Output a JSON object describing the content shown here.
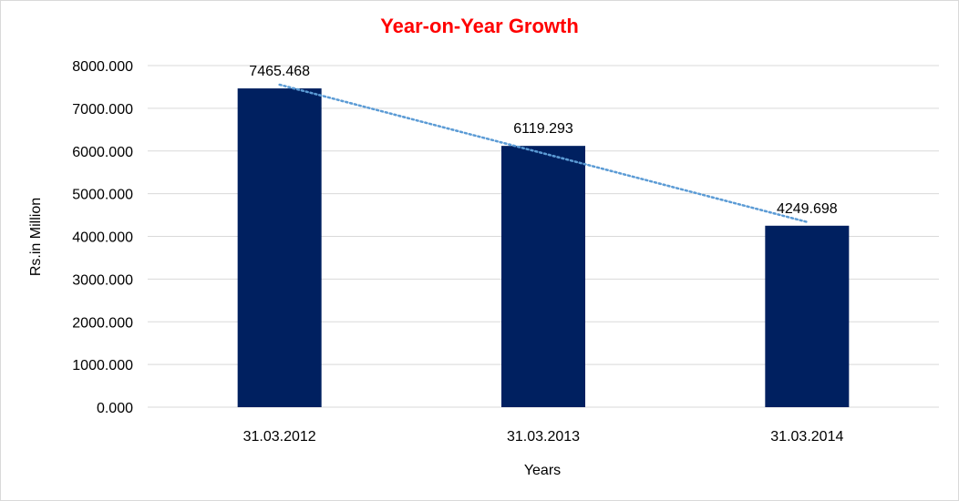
{
  "chart_data": {
    "type": "bar",
    "title": "Year-on-Year Growth",
    "categories": [
      "31.03.2012",
      "31.03.2013",
      "31.03.2014"
    ],
    "values": [
      7465.468,
      6119.293,
      4249.698
    ],
    "data_labels": [
      "7465.468",
      "6119.293",
      "4249.698"
    ],
    "xlabel": "Years",
    "ylabel": "Rs.in Million",
    "ylim": [
      0,
      8000
    ],
    "yticks": [
      0,
      1000,
      2000,
      3000,
      4000,
      5000,
      6000,
      7000,
      8000
    ],
    "ytick_labels": [
      "0.000",
      "1000.000",
      "2000.000",
      "3000.000",
      "4000.000",
      "5000.000",
      "6000.000",
      "7000.000",
      "8000.000"
    ],
    "grid": true,
    "legend": "none",
    "trendline": "linear",
    "colors": {
      "bar": "#002060",
      "trendline": "#5b9bd5",
      "title": "#ff0000",
      "grid": "#d9d9d9"
    }
  }
}
